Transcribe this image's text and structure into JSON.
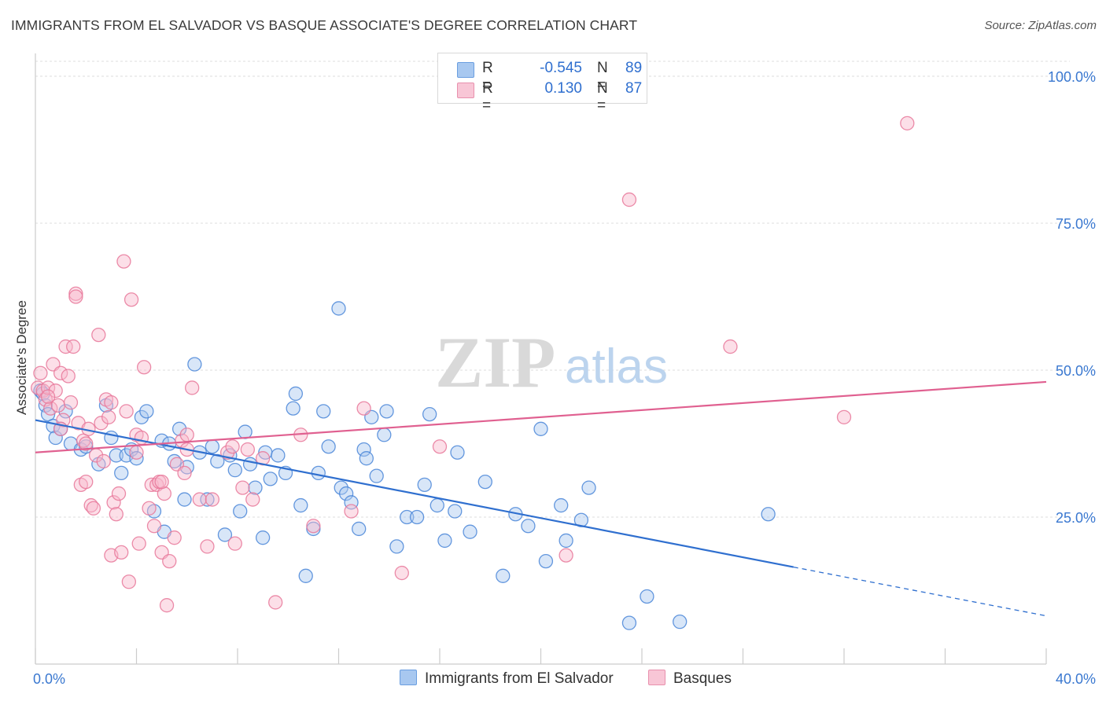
{
  "title": "IMMIGRANTS FROM EL SALVADOR VS BASQUE ASSOCIATE'S DEGREE CORRELATION CHART",
  "source": "Source: ZipAtlas.com",
  "watermark": {
    "zip": "ZIP",
    "atlas": "atlas"
  },
  "legend_top": {
    "rows": [
      {
        "r_label": "R =",
        "r_value": "-0.545",
        "n_label": "N =",
        "n_value": "89",
        "color": "#a8c8f0"
      },
      {
        "r_label": "R =",
        "r_value": "0.130",
        "n_label": "N =",
        "n_value": "87",
        "color": "#f8b8cc"
      }
    ]
  },
  "legend_bottom": [
    {
      "label": "Immigrants from El Salvador",
      "color": "#a8c8f0"
    },
    {
      "label": "Basques",
      "color": "#f8b8cc"
    }
  ],
  "chart_data": {
    "type": "scatter",
    "ylabel": "Associate's Degree",
    "xlim": [
      0,
      40
    ],
    "ylim": [
      0,
      105
    ],
    "x_tick_labels": [
      {
        "value": 0,
        "label": "0.0%"
      },
      {
        "value": 40,
        "label": "40.0%"
      }
    ],
    "y_tick_labels": [
      {
        "value": 25,
        "label": "25.0%"
      },
      {
        "value": 50,
        "label": "50.0%"
      },
      {
        "value": 75,
        "label": "75.0%"
      },
      {
        "value": 100,
        "label": "100.0%"
      }
    ],
    "grid": true,
    "series": [
      {
        "name": "Immigrants from El Salvador",
        "color": "#4a86d8",
        "fill": "#a8c8f0",
        "trend": {
          "x_start": 0,
          "y_start": 41.5,
          "x_end": 30,
          "y_end": 16.5,
          "dashed_to_x": 40,
          "dashed_to_y": 8.2,
          "color": "#2f6fcf"
        },
        "points": [
          [
            0.2,
            46.5
          ],
          [
            0.3,
            46.0
          ],
          [
            0.4,
            44.0
          ],
          [
            0.5,
            42.5
          ],
          [
            0.7,
            40.5
          ],
          [
            0.8,
            38.5
          ],
          [
            1.0,
            40.0
          ],
          [
            1.2,
            43.0
          ],
          [
            1.4,
            37.5
          ],
          [
            1.8,
            36.5
          ],
          [
            2.0,
            37.0
          ],
          [
            2.5,
            34.0
          ],
          [
            2.8,
            44.0
          ],
          [
            3.0,
            38.5
          ],
          [
            3.2,
            35.5
          ],
          [
            3.4,
            32.5
          ],
          [
            3.6,
            35.5
          ],
          [
            3.8,
            36.5
          ],
          [
            4.0,
            35.0
          ],
          [
            4.2,
            42.0
          ],
          [
            4.4,
            43.0
          ],
          [
            4.7,
            26.0
          ],
          [
            5.0,
            38.0
          ],
          [
            5.1,
            22.5
          ],
          [
            5.3,
            37.5
          ],
          [
            5.5,
            34.5
          ],
          [
            5.7,
            40.0
          ],
          [
            5.9,
            28.0
          ],
          [
            6.0,
            33.5
          ],
          [
            6.3,
            51.0
          ],
          [
            6.5,
            36.0
          ],
          [
            6.8,
            28.0
          ],
          [
            7.0,
            37.0
          ],
          [
            7.2,
            34.5
          ],
          [
            7.5,
            22.0
          ],
          [
            7.7,
            35.5
          ],
          [
            7.9,
            33.0
          ],
          [
            8.1,
            26.0
          ],
          [
            8.3,
            39.5
          ],
          [
            8.5,
            34.0
          ],
          [
            8.7,
            30.0
          ],
          [
            9.0,
            21.5
          ],
          [
            9.1,
            36.0
          ],
          [
            9.3,
            31.5
          ],
          [
            9.6,
            35.5
          ],
          [
            9.9,
            32.5
          ],
          [
            10.2,
            43.5
          ],
          [
            10.3,
            46.0
          ],
          [
            10.5,
            27.0
          ],
          [
            10.7,
            15.0
          ],
          [
            11.0,
            23.0
          ],
          [
            11.2,
            32.5
          ],
          [
            11.4,
            43.0
          ],
          [
            11.6,
            37.0
          ],
          [
            12.0,
            60.5
          ],
          [
            12.1,
            30.0
          ],
          [
            12.3,
            29.0
          ],
          [
            12.5,
            27.5
          ],
          [
            12.8,
            23.0
          ],
          [
            13.0,
            36.5
          ],
          [
            13.1,
            35.0
          ],
          [
            13.3,
            42.0
          ],
          [
            13.5,
            32.0
          ],
          [
            13.8,
            39.0
          ],
          [
            13.9,
            43.0
          ],
          [
            14.3,
            20.0
          ],
          [
            14.7,
            25.0
          ],
          [
            15.1,
            25.0
          ],
          [
            15.4,
            30.5
          ],
          [
            15.6,
            42.5
          ],
          [
            15.9,
            27.0
          ],
          [
            16.2,
            21.0
          ],
          [
            16.6,
            26.0
          ],
          [
            16.7,
            36.0
          ],
          [
            17.2,
            22.5
          ],
          [
            17.8,
            31.0
          ],
          [
            18.5,
            15.0
          ],
          [
            19.0,
            25.5
          ],
          [
            19.5,
            23.5
          ],
          [
            20.0,
            40.0
          ],
          [
            20.2,
            17.5
          ],
          [
            20.8,
            27.0
          ],
          [
            21.0,
            21.0
          ],
          [
            21.6,
            24.5
          ],
          [
            21.9,
            30.0
          ],
          [
            23.5,
            7.0
          ],
          [
            24.2,
            11.5
          ],
          [
            25.5,
            7.2
          ],
          [
            29.0,
            25.5
          ]
        ]
      },
      {
        "name": "Basques",
        "color": "#e8789a",
        "fill": "#f8b8cc",
        "trend": {
          "x_start": 0,
          "y_start": 36.0,
          "x_end": 40,
          "y_end": 48.0,
          "color": "#e06090"
        },
        "points": [
          [
            0.1,
            47.0
          ],
          [
            0.2,
            49.5
          ],
          [
            0.3,
            46.5
          ],
          [
            0.4,
            45.0
          ],
          [
            0.5,
            47.0
          ],
          [
            0.6,
            43.5
          ],
          [
            0.7,
            51.0
          ],
          [
            0.8,
            46.5
          ],
          [
            0.9,
            44.0
          ],
          [
            1.0,
            49.5
          ],
          [
            1.1,
            41.5
          ],
          [
            1.2,
            54.0
          ],
          [
            1.3,
            49.0
          ],
          [
            1.4,
            44.5
          ],
          [
            1.5,
            54.0
          ],
          [
            1.6,
            63.0
          ],
          [
            1.6,
            62.5
          ],
          [
            1.7,
            41.0
          ],
          [
            1.8,
            30.5
          ],
          [
            1.9,
            38.0
          ],
          [
            2.0,
            31.0
          ],
          [
            2.1,
            40.0
          ],
          [
            2.2,
            27.0
          ],
          [
            2.3,
            26.5
          ],
          [
            2.4,
            35.5
          ],
          [
            2.5,
            56.0
          ],
          [
            2.6,
            41.0
          ],
          [
            2.7,
            34.5
          ],
          [
            2.8,
            45.0
          ],
          [
            2.9,
            42.0
          ],
          [
            3.0,
            18.5
          ],
          [
            3.1,
            27.5
          ],
          [
            3.2,
            25.5
          ],
          [
            3.3,
            29.0
          ],
          [
            3.4,
            19.0
          ],
          [
            3.5,
            68.5
          ],
          [
            3.6,
            43.0
          ],
          [
            3.7,
            14.0
          ],
          [
            3.8,
            62.0
          ],
          [
            4.0,
            39.0
          ],
          [
            4.1,
            20.5
          ],
          [
            4.2,
            38.5
          ],
          [
            4.3,
            50.5
          ],
          [
            4.5,
            26.5
          ],
          [
            4.6,
            30.5
          ],
          [
            4.7,
            23.5
          ],
          [
            4.8,
            30.5
          ],
          [
            4.9,
            31.0
          ],
          [
            5.0,
            19.0
          ],
          [
            5.1,
            29.0
          ],
          [
            5.2,
            10.0
          ],
          [
            5.3,
            17.5
          ],
          [
            5.5,
            21.5
          ],
          [
            5.6,
            34.0
          ],
          [
            5.8,
            38.0
          ],
          [
            5.9,
            32.5
          ],
          [
            6.0,
            39.0
          ],
          [
            6.2,
            47.0
          ],
          [
            6.5,
            28.0
          ],
          [
            6.8,
            20.0
          ],
          [
            7.0,
            28.0
          ],
          [
            7.6,
            36.0
          ],
          [
            7.8,
            37.0
          ],
          [
            7.9,
            20.5
          ],
          [
            8.2,
            30.0
          ],
          [
            8.4,
            36.5
          ],
          [
            8.6,
            28.0
          ],
          [
            9.0,
            35.0
          ],
          [
            9.5,
            10.5
          ],
          [
            10.5,
            39.0
          ],
          [
            11.0,
            23.5
          ],
          [
            12.5,
            26.0
          ],
          [
            13.0,
            43.5
          ],
          [
            14.5,
            15.5
          ],
          [
            16.0,
            37.0
          ],
          [
            21.0,
            18.5
          ],
          [
            23.5,
            79.0
          ],
          [
            27.5,
            54.0
          ],
          [
            32.0,
            42.0
          ],
          [
            34.5,
            92.0
          ],
          [
            1.0,
            40.0
          ],
          [
            2.0,
            37.5
          ],
          [
            3.0,
            44.5
          ],
          [
            4.0,
            36.0
          ],
          [
            5.0,
            31.0
          ],
          [
            6.0,
            36.5
          ],
          [
            0.5,
            45.5
          ]
        ]
      }
    ]
  }
}
